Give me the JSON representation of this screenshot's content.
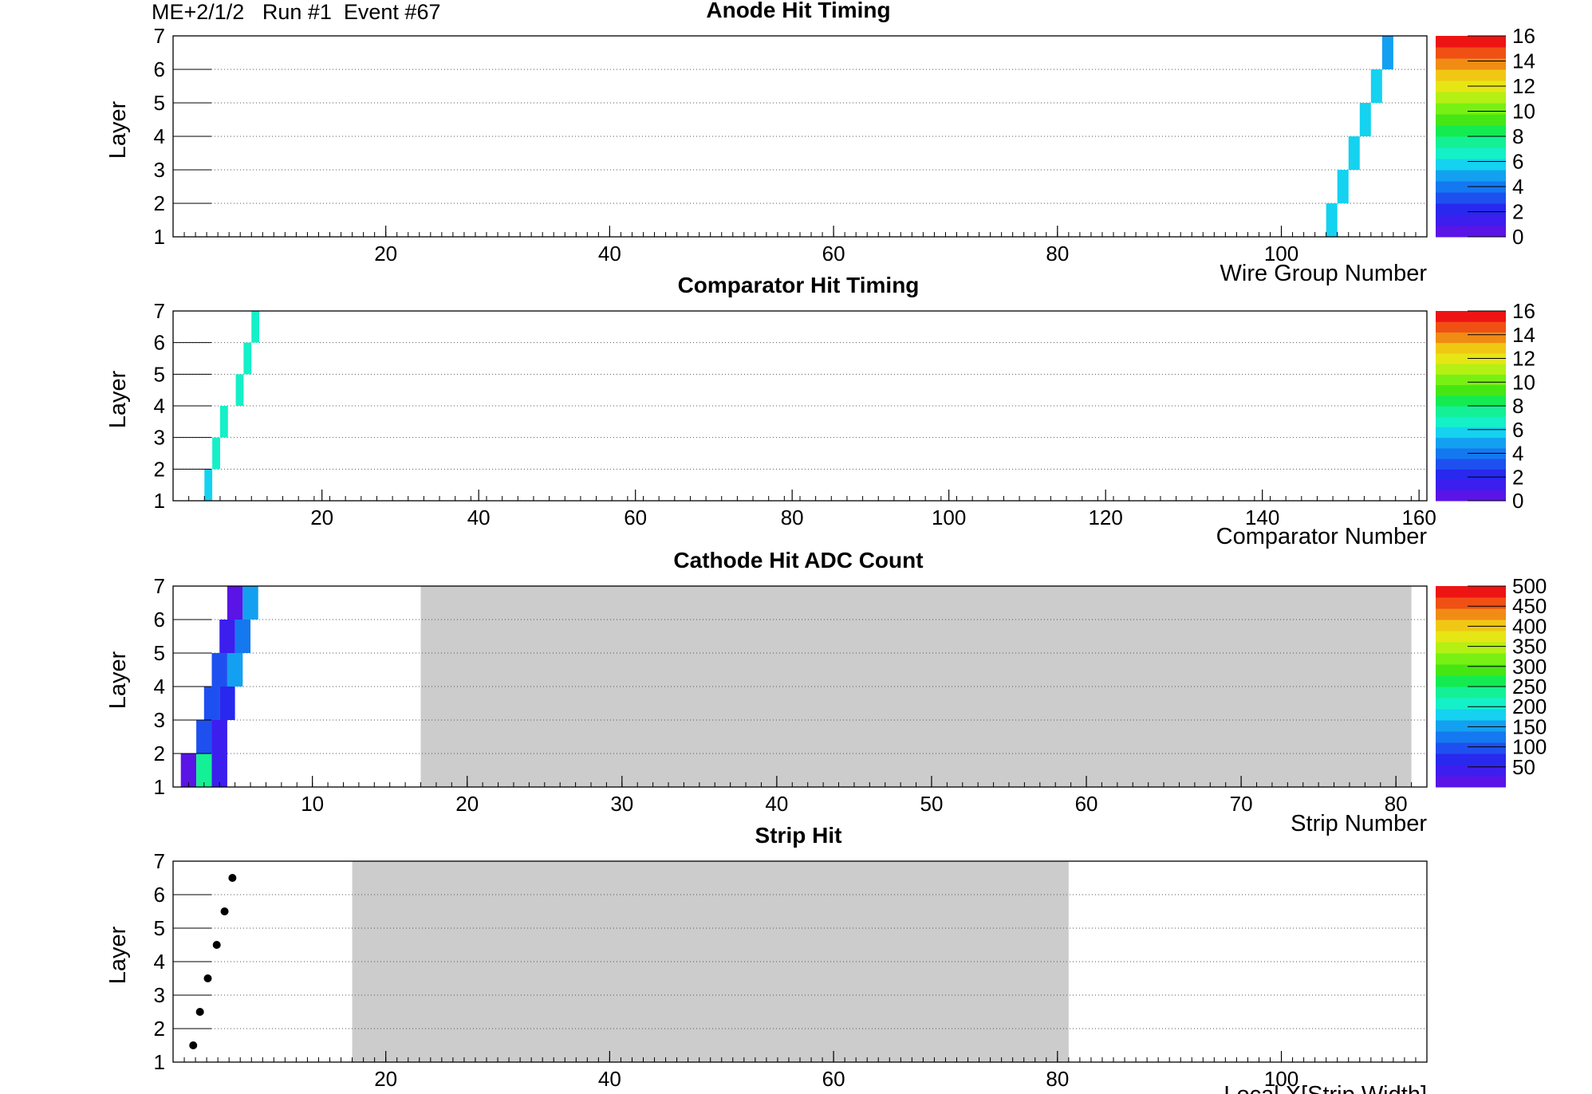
{
  "header": {
    "label": "ME+2/1/2   Run #1  Event #67"
  },
  "colors": {
    "palette": [
      "#5a14e6",
      "#3c1eef",
      "#2828ee",
      "#1e50f0",
      "#1478f0",
      "#14a0f0",
      "#14d2f0",
      "#14f0c8",
      "#14f096",
      "#14eb50",
      "#46e614",
      "#78f014",
      "#b4f014",
      "#e6e614",
      "#f0c814",
      "#f08c14",
      "#f05014",
      "#ee1414"
    ],
    "masked_region": "#cccccc",
    "marker": "#000000"
  },
  "chart_data": [
    {
      "type": "heatmap",
      "title": "Anode Hit Timing",
      "xlabel": "Wire Group Number",
      "ylabel": "Layer",
      "xlim": [
        1,
        113
      ],
      "ylim": [
        1,
        7
      ],
      "xticks": [
        "20",
        "40",
        "60",
        "80",
        "100"
      ],
      "yticks": [
        "1",
        "2",
        "3",
        "4",
        "5",
        "6",
        "7"
      ],
      "zlim": [
        0,
        16
      ],
      "zticks": [
        "0",
        "2",
        "4",
        "6",
        "8",
        "10",
        "12",
        "14",
        "16"
      ],
      "cells": [
        {
          "x": 104,
          "layer": 1,
          "z": 6
        },
        {
          "x": 105,
          "layer": 2,
          "z": 6
        },
        {
          "x": 106,
          "layer": 3,
          "z": 6
        },
        {
          "x": 107,
          "layer": 4,
          "z": 6
        },
        {
          "x": 108,
          "layer": 5,
          "z": 6
        },
        {
          "x": 109,
          "layer": 6,
          "z": 5
        }
      ]
    },
    {
      "type": "heatmap",
      "title": "Comparator Hit Timing",
      "xlabel": "Comparator Number",
      "ylabel": "Layer",
      "xlim": [
        1,
        161
      ],
      "ylim": [
        1,
        7
      ],
      "xticks": [
        "20",
        "40",
        "60",
        "80",
        "100",
        "120",
        "140",
        "160"
      ],
      "yticks": [
        "1",
        "2",
        "3",
        "4",
        "5",
        "6",
        "7"
      ],
      "zlim": [
        0,
        16
      ],
      "zticks": [
        "0",
        "2",
        "4",
        "6",
        "8",
        "10",
        "12",
        "14",
        "16"
      ],
      "cells": [
        {
          "x": 5,
          "layer": 1,
          "z": 6
        },
        {
          "x": 6,
          "layer": 2,
          "z": 7
        },
        {
          "x": 7,
          "layer": 3,
          "z": 7
        },
        {
          "x": 9,
          "layer": 4,
          "z": 7
        },
        {
          "x": 10,
          "layer": 5,
          "z": 7
        },
        {
          "x": 11,
          "layer": 6,
          "z": 7
        }
      ]
    },
    {
      "type": "heatmap",
      "title": "Cathode Hit ADC Count",
      "xlabel": "Strip Number",
      "ylabel": "Layer",
      "xlim": [
        1,
        82
      ],
      "ylim": [
        1,
        7
      ],
      "xticks": [
        "10",
        "20",
        "30",
        "40",
        "50",
        "60",
        "70",
        "80"
      ],
      "yticks": [
        "1",
        "2",
        "3",
        "4",
        "5",
        "6",
        "7"
      ],
      "zlim": [
        0,
        500
      ],
      "zticks": [
        "50",
        "100",
        "150",
        "200",
        "250",
        "300",
        "350",
        "400",
        "450",
        "500"
      ],
      "masked_range": [
        17,
        81
      ],
      "cells": [
        {
          "x": 1.5,
          "layer": 1,
          "z": 20
        },
        {
          "x": 2.5,
          "layer": 1,
          "z": 230
        },
        {
          "x": 3.5,
          "layer": 1,
          "z": 55
        },
        {
          "x": 2.5,
          "layer": 2,
          "z": 105
        },
        {
          "x": 3.5,
          "layer": 2,
          "z": 55
        },
        {
          "x": 3,
          "layer": 3,
          "z": 105
        },
        {
          "x": 4,
          "layer": 3,
          "z": 75
        },
        {
          "x": 3.5,
          "layer": 4,
          "z": 105
        },
        {
          "x": 4.5,
          "layer": 4,
          "z": 140
        },
        {
          "x": 4,
          "layer": 5,
          "z": 55
        },
        {
          "x": 5,
          "layer": 5,
          "z": 135
        },
        {
          "x": 4.5,
          "layer": 6,
          "z": 20
        },
        {
          "x": 5.5,
          "layer": 6,
          "z": 150
        }
      ]
    },
    {
      "type": "scatter",
      "title": "Strip Hit",
      "xlabel": "Local X[Strip Width]",
      "ylabel": "Layer",
      "xlim": [
        1,
        113
      ],
      "ylim": [
        1,
        7
      ],
      "xticks": [
        "20",
        "40",
        "60",
        "80",
        "100"
      ],
      "yticks": [
        "1",
        "2",
        "3",
        "4",
        "5",
        "6",
        "7"
      ],
      "masked_range": [
        17,
        81
      ],
      "points": [
        {
          "x": 2.8,
          "y": 1.5
        },
        {
          "x": 3.4,
          "y": 2.5
        },
        {
          "x": 4.1,
          "y": 3.5
        },
        {
          "x": 4.9,
          "y": 4.5
        },
        {
          "x": 5.6,
          "y": 5.5
        },
        {
          "x": 6.3,
          "y": 6.5
        }
      ]
    }
  ]
}
